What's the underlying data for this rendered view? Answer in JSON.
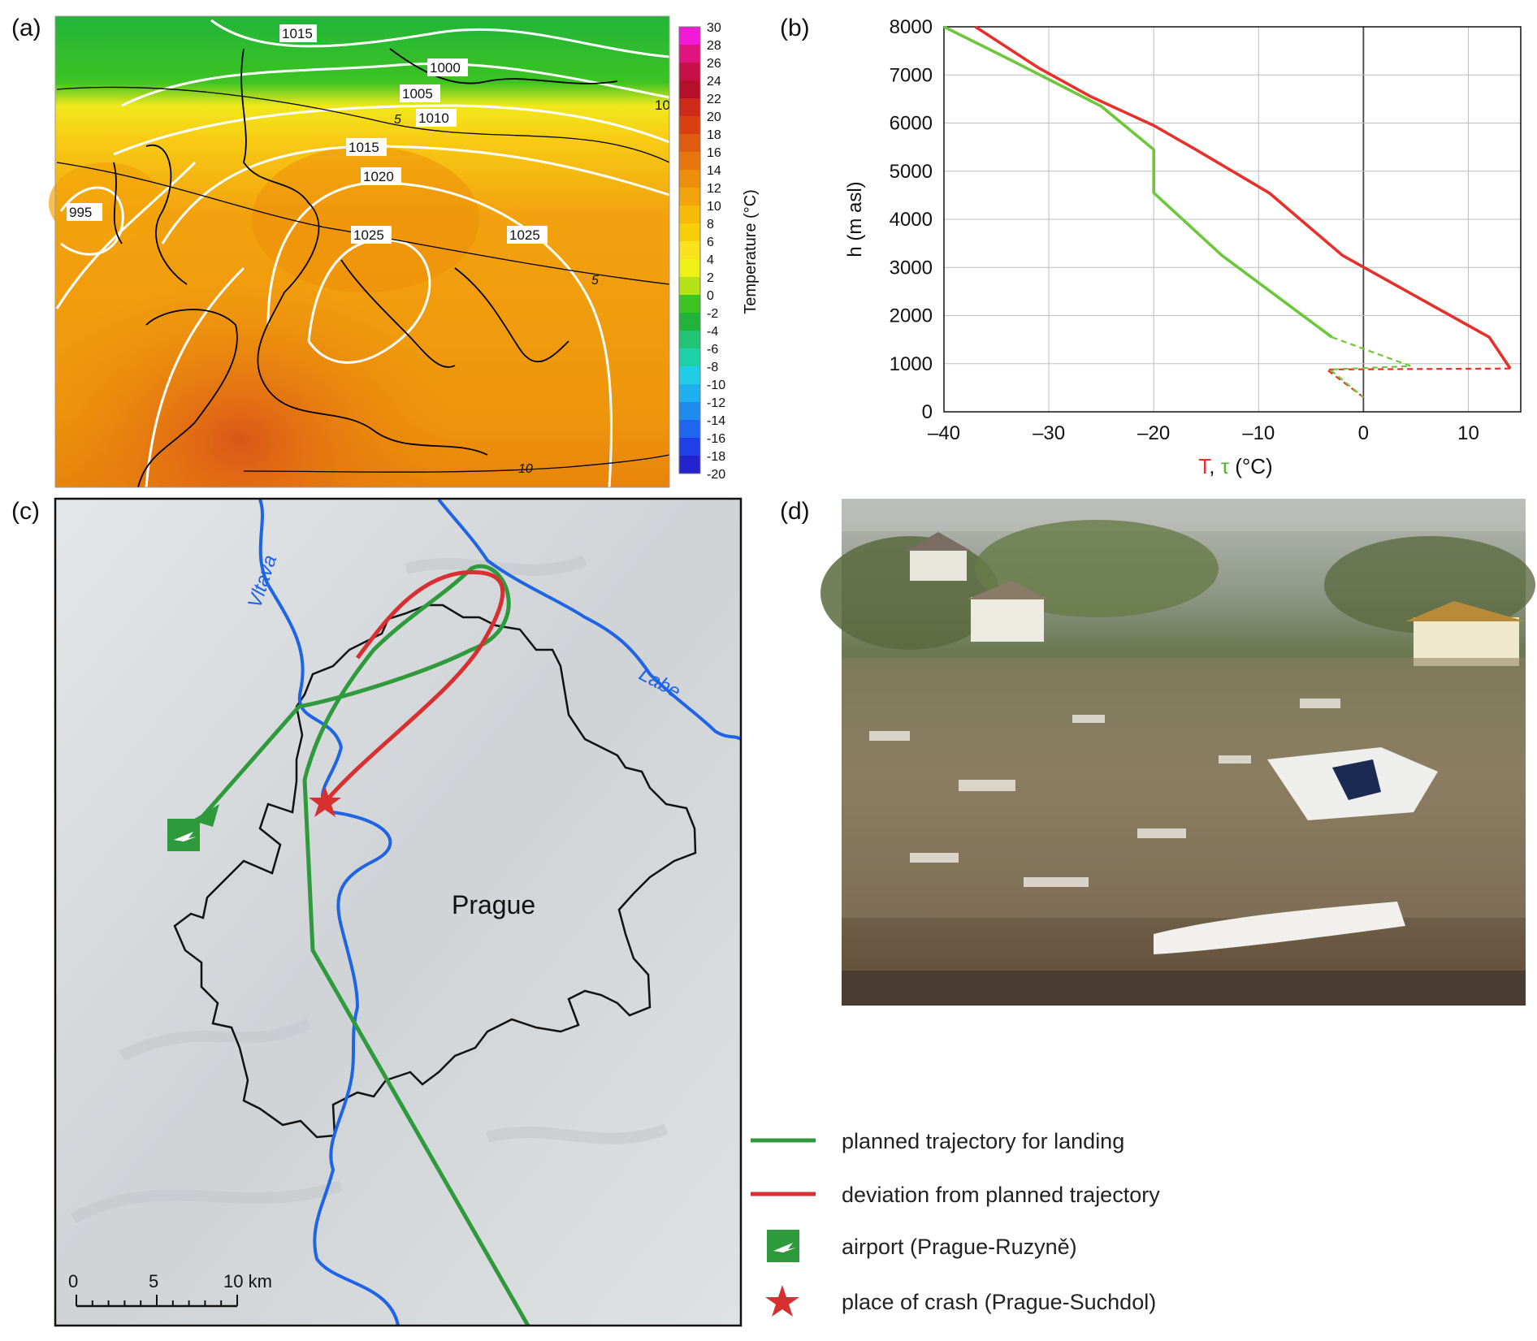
{
  "panels": {
    "a": "(a)",
    "b": "(b)",
    "c": "(c)",
    "d": "(d)"
  },
  "map_a": {
    "colorbar_label": "Temperature (°C)",
    "colorbar_ticks": [
      "30",
      "28",
      "26",
      "24",
      "22",
      "20",
      "18",
      "16",
      "14",
      "12",
      "10",
      "8",
      "6",
      "4",
      "2",
      "0",
      "-2",
      "-4",
      "-6",
      "-8",
      "-10",
      "-12",
      "-14",
      "-16",
      "-18",
      "-20"
    ],
    "colorbar_colors": [
      "#f21ad8",
      "#e0147e",
      "#c81048",
      "#b4102a",
      "#cc2a1a",
      "#d84010",
      "#e05a10",
      "#e8760c",
      "#ee8e0a",
      "#f2a40a",
      "#f6ba08",
      "#f8ce0a",
      "#fae21e",
      "#eef018",
      "#b6e21a",
      "#3cc422",
      "#22b43a",
      "#20c474",
      "#1ed0a8",
      "#1ecee6",
      "#1eb0ee",
      "#1e8cee",
      "#1e66ee",
      "#1e40e6",
      "#2424cc"
    ],
    "isobar_labels": [
      "1015",
      "1000",
      "1005",
      "1010",
      "1015",
      "1020",
      "995",
      "1025",
      "1025",
      "10"
    ],
    "isotherm_labels": [
      "5",
      "5",
      "10"
    ],
    "isotherm_color": "#000000",
    "isobar_color": "#ffffff"
  },
  "chart_data": {
    "type": "line",
    "xlabel_T": "T",
    "xlabel_sep": ", ",
    "xlabel_tau": "τ",
    "xlabel_unit": " (°C)",
    "ylabel": "h (m asl)",
    "xlim": [
      -40,
      15
    ],
    "ylim": [
      0,
      8000
    ],
    "x_ticks": [
      -40,
      -30,
      -20,
      -10,
      0,
      10
    ],
    "x_tick_labels": [
      "–40",
      "–30",
      "–20",
      "–10",
      "0",
      "10"
    ],
    "y_ticks": [
      0,
      1000,
      2000,
      3000,
      4000,
      5000,
      6000,
      7000,
      8000
    ],
    "grid": true,
    "series": [
      {
        "color": "#e8302a",
        "style": "solid",
        "points": [
          [
            14,
            900
          ],
          [
            12,
            1550
          ],
          [
            -2,
            3250
          ],
          [
            -9,
            4550
          ],
          [
            -16,
            5450
          ],
          [
            -20,
            5950
          ],
          [
            -26,
            6550
          ],
          [
            -31,
            7150
          ],
          [
            -37,
            8000
          ]
        ]
      },
      {
        "color": "#e8302a",
        "style": "dashed",
        "points": [
          [
            14,
            900
          ],
          [
            -3.5,
            880
          ],
          [
            0,
            300
          ]
        ]
      },
      {
        "color": "#6cc83a",
        "style": "solid",
        "points": [
          [
            -3,
            1550
          ],
          [
            -13.5,
            3250
          ],
          [
            -20,
            4550
          ],
          [
            -20,
            5450
          ],
          [
            -25,
            6350
          ],
          [
            -34,
            7350
          ],
          [
            -40,
            8000
          ]
        ]
      },
      {
        "color": "#6cc83a",
        "style": "dashed",
        "points": [
          [
            -3,
            1550
          ],
          [
            4.5,
            950
          ],
          [
            -3.2,
            880
          ],
          [
            0,
            300
          ]
        ]
      }
    ]
  },
  "map_c": {
    "rivers": [
      "Vltava",
      "Labe"
    ],
    "city": "Prague",
    "scale_labels": [
      "0",
      "5",
      "10 km"
    ]
  },
  "legend": {
    "items": [
      {
        "label": "planned trajectory for landing",
        "color": "#2e9a3c"
      },
      {
        "label": "deviation from planned trajectory",
        "color": "#d83030"
      },
      {
        "label": "airport (Prague-Ruzyně)",
        "color": "#2e9a3c"
      },
      {
        "label": "place of crash (Prague-Suchdol)",
        "color": "#d83030"
      }
    ]
  }
}
